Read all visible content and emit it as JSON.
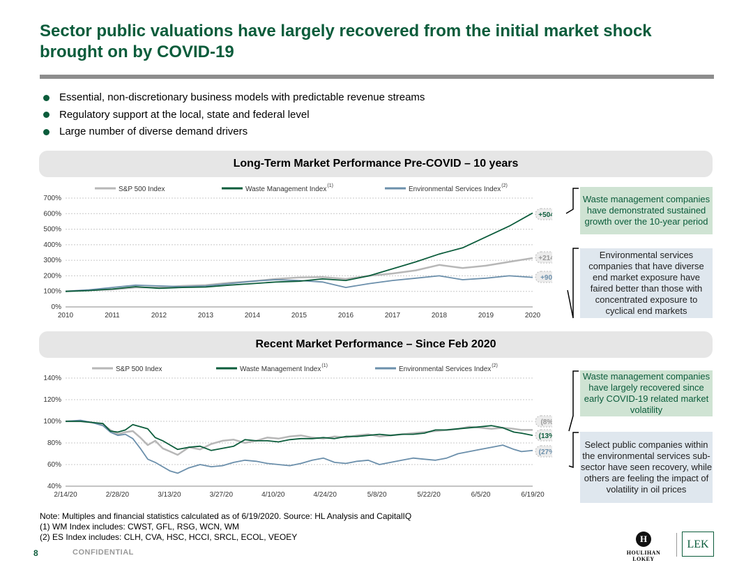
{
  "title": "Sector public valuations have largely recovered from the initial market shock brought on by COVID-19",
  "bullets": [
    "Essential, non-discretionary business models with predictable revenue streams",
    "Regulatory support at the local, state and federal level",
    "Large number of diverse demand drivers"
  ],
  "sections": {
    "long_term": "Long-Term Market Performance Pre-COVID – 10 years",
    "recent": "Recent Market Performance – Since Feb 2020"
  },
  "callouts": {
    "lt_green": "Waste management companies have demonstrated sustained growth over the 10-year period",
    "lt_blue": "Environmental services companies that have diverse end market exposure have faired better than those with concentrated exposure to cyclical end markets",
    "rc_green": "Waste management companies have largely recovered since early COVID-19 related market volatility",
    "rc_blue": "Select public companies within the environmental services sub-sector have seen recovery, while others are feeling the impact of volatility in oil prices"
  },
  "notes": [
    "Note: Multiples and financial statistics calculated as of 6/19/2020. Source: HL Analysis and CapitalIQ",
    "(1) WM Index includes: CWST, GFL, RSG, WCN, WM",
    "(2) ES Index includes: CLH, CVA, HSC, HCCI, SRCL, ECOL, VEOEY"
  ],
  "footer": {
    "page": "8",
    "confidential": "CONFIDENTIAL",
    "hl_mark": "H",
    "hl_name": "HOULIHAN LOKEY",
    "lek": "LEK"
  },
  "colors": {
    "sp500": "#b7b7b7",
    "wm": "#0b5c3b",
    "es": "#6b8fab",
    "accent": "#0b5c3b"
  },
  "chart_data": [
    {
      "type": "line",
      "title": "Long-Term Market Performance Pre-COVID – 10 years",
      "xlabel": "",
      "ylabel": "",
      "x_ticks": [
        "2010",
        "2011",
        "2012",
        "2013",
        "2014",
        "2015",
        "2016",
        "2017",
        "2018",
        "2019",
        "2020"
      ],
      "y_ticks": [
        "0%",
        "100%",
        "200%",
        "300%",
        "400%",
        "500%",
        "600%",
        "700%"
      ],
      "ylim": [
        0,
        700
      ],
      "grid": true,
      "legend": "top",
      "series": [
        {
          "name": "S&P 500 Index",
          "sup": "",
          "color": "#b7b7b7",
          "x": [
            2010,
            2010.5,
            2011,
            2011.5,
            2012,
            2012.5,
            2013,
            2013.5,
            2014,
            2014.5,
            2015,
            2015.5,
            2016,
            2016.5,
            2017,
            2017.5,
            2018,
            2018.5,
            2019,
            2019.5,
            2020
          ],
          "y": [
            100,
            108,
            112,
            125,
            125,
            135,
            140,
            155,
            165,
            180,
            190,
            192,
            180,
            200,
            215,
            235,
            270,
            250,
            265,
            290,
            314
          ],
          "end_label": "+214%"
        },
        {
          "name": "Waste Management Index",
          "sup": "(1)",
          "color": "#0b5c3b",
          "x": [
            2010,
            2010.5,
            2011,
            2011.5,
            2012,
            2012.5,
            2013,
            2013.5,
            2014,
            2014.5,
            2015,
            2015.5,
            2016,
            2016.5,
            2017,
            2017.5,
            2018,
            2018.5,
            2019,
            2019.5,
            2020
          ],
          "y": [
            100,
            105,
            115,
            130,
            120,
            125,
            128,
            140,
            150,
            160,
            165,
            180,
            170,
            200,
            245,
            290,
            340,
            380,
            450,
            520,
            604
          ],
          "end_label": "+504%"
        },
        {
          "name": "Environmental Services Index",
          "sup": "(2)",
          "color": "#6b8fab",
          "x": [
            2010,
            2010.5,
            2011,
            2011.5,
            2012,
            2012.5,
            2013,
            2013.5,
            2014,
            2014.5,
            2015,
            2015.5,
            2016,
            2016.5,
            2017,
            2017.5,
            2018,
            2018.5,
            2019,
            2019.5,
            2020
          ],
          "y": [
            100,
            110,
            125,
            140,
            135,
            130,
            135,
            150,
            165,
            175,
            170,
            160,
            125,
            150,
            170,
            185,
            200,
            175,
            185,
            200,
            190
          ],
          "end_label": "+90%"
        }
      ]
    },
    {
      "type": "line",
      "title": "Recent Market Performance – Since Feb 2020",
      "xlabel": "",
      "ylabel": "",
      "x_ticks": [
        "2/14/20",
        "2/28/20",
        "3/13/20",
        "3/27/20",
        "4/10/20",
        "4/24/20",
        "5/8/20",
        "5/22/20",
        "6/5/20",
        "6/19/20"
      ],
      "y_ticks": [
        "40%",
        "60%",
        "80%",
        "100%",
        "120%",
        "140%"
      ],
      "ylim": [
        40,
        140
      ],
      "grid": true,
      "legend": "top",
      "series": [
        {
          "name": "S&P 500 Index",
          "sup": "",
          "color": "#b7b7b7",
          "x": [
            0,
            4,
            7,
            10,
            12,
            14,
            16,
            18,
            20,
            22,
            24,
            26,
            28,
            30,
            33,
            36,
            39,
            42,
            45,
            48,
            51,
            54,
            57,
            60,
            63,
            66,
            69,
            72,
            75,
            78,
            81,
            84,
            87,
            90,
            93,
            96,
            99,
            102,
            105,
            108,
            111,
            114,
            117,
            120,
            122,
            125
          ],
          "y": [
            100,
            100,
            99,
            97,
            92,
            88,
            90,
            91,
            85,
            78,
            82,
            75,
            72,
            69,
            76,
            74,
            79,
            82,
            83,
            80,
            82,
            85,
            84,
            86,
            87,
            85,
            84,
            86,
            85,
            87,
            88,
            86,
            87,
            88,
            89,
            90,
            91,
            92,
            93,
            95,
            94,
            93,
            94,
            93,
            92,
            92
          ],
          "end_label": "(8%)"
        },
        {
          "name": "Waste Management Index",
          "sup": "(1)",
          "color": "#0b5c3b",
          "x": [
            0,
            4,
            7,
            10,
            12,
            14,
            16,
            18,
            20,
            22,
            24,
            26,
            28,
            30,
            33,
            36,
            39,
            42,
            45,
            48,
            51,
            54,
            57,
            60,
            63,
            66,
            69,
            72,
            75,
            78,
            81,
            84,
            87,
            90,
            93,
            96,
            99,
            102,
            105,
            108,
            111,
            114,
            117,
            120,
            122,
            125
          ],
          "y": [
            100,
            100,
            99,
            98,
            91,
            90,
            92,
            97,
            95,
            93,
            85,
            82,
            78,
            74,
            76,
            77,
            73,
            75,
            77,
            83,
            82,
            82,
            81,
            83,
            84,
            84,
            85,
            84,
            86,
            86,
            87,
            88,
            87,
            88,
            88,
            89,
            92,
            92,
            93,
            94,
            95,
            96,
            94,
            90,
            89,
            87
          ],
          "end_label": "(13%)"
        },
        {
          "name": "Environmental Services Index",
          "sup": "(2)",
          "color": "#6b8fab",
          "x": [
            0,
            4,
            7,
            10,
            12,
            14,
            16,
            18,
            20,
            22,
            24,
            26,
            28,
            30,
            33,
            36,
            39,
            42,
            45,
            48,
            51,
            54,
            57,
            60,
            63,
            66,
            69,
            72,
            75,
            78,
            81,
            84,
            87,
            90,
            93,
            96,
            99,
            102,
            105,
            108,
            111,
            114,
            117,
            120,
            122,
            125
          ],
          "y": [
            100,
            101,
            99,
            96,
            90,
            87,
            88,
            84,
            75,
            65,
            62,
            58,
            54,
            52,
            57,
            60,
            58,
            59,
            62,
            64,
            63,
            61,
            60,
            59,
            61,
            64,
            66,
            62,
            61,
            63,
            64,
            60,
            62,
            64,
            66,
            65,
            64,
            66,
            70,
            72,
            74,
            76,
            78,
            74,
            72,
            73
          ],
          "end_label": "(27%)"
        }
      ]
    }
  ]
}
